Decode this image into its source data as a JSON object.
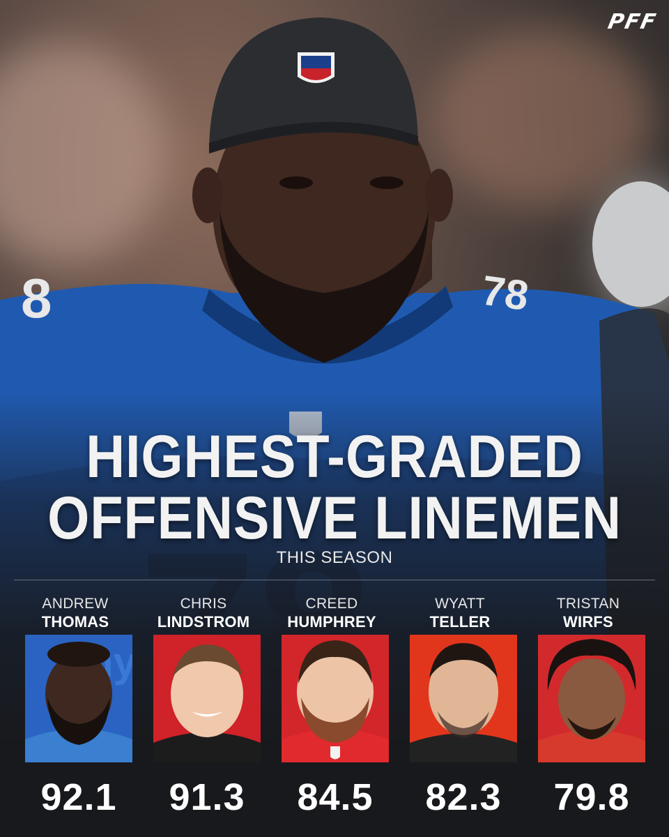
{
  "brand": {
    "logo_text": "PFF"
  },
  "headline": {
    "line1": "HIGHEST-GRADED",
    "line2": "OFFENSIVE LINEMEN",
    "subtitle": "THIS SEASON"
  },
  "colors": {
    "giants_blue": "#1c52a8",
    "lions_blue": "#1f66c8",
    "red_bg": "#d8262b",
    "dark_bg": "#18191c"
  },
  "players": [
    {
      "first": "ANDREW",
      "last": "THOMAS",
      "grade": "92.1",
      "photo_bg": "#2a63c2",
      "jersey": "#3a7fd0"
    },
    {
      "first": "CHRIS",
      "last": "LINDSTROM",
      "grade": "91.3",
      "photo_bg": "#cf2229",
      "jersey": "#1c1c1c"
    },
    {
      "first": "CREED",
      "last": "HUMPHREY",
      "grade": "84.5",
      "photo_bg": "#d3262a",
      "jersey": "#e02a2e"
    },
    {
      "first": "WYATT",
      "last": "TELLER",
      "grade": "82.3",
      "photo_bg": "#e2361c",
      "jersey": "#222222"
    },
    {
      "first": "TRISTAN",
      "last": "WIRFS",
      "grade": "79.8",
      "photo_bg": "#d22a2c",
      "jersey": "#d63a2c"
    }
  ]
}
